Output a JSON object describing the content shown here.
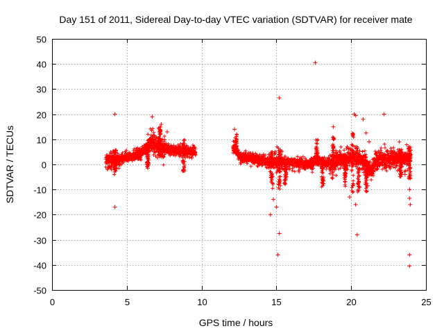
{
  "chart_data": {
    "type": "scatter",
    "title": "Day 151 of 2011, Sidereal Day-to-day VTEC variation (SDTVAR) for receiver mate",
    "xlabel": "GPS time / hours",
    "ylabel": "SDTVAR / TECUs",
    "xlim": [
      0,
      25
    ],
    "ylim": [
      -50,
      50
    ],
    "xticks": [
      0,
      5,
      10,
      15,
      20,
      25
    ],
    "yticks": [
      -50,
      -40,
      -30,
      -20,
      -10,
      0,
      10,
      20,
      30,
      40,
      50
    ],
    "grid": true,
    "marker": "+",
    "color": "#ff0000",
    "outliers": [
      [
        4.2,
        20
      ],
      [
        4.2,
        -17
      ],
      [
        6.4,
        -1.5
      ],
      [
        6.7,
        19
      ],
      [
        8.8,
        -2.5
      ],
      [
        12.2,
        14
      ],
      [
        15.2,
        26.5
      ],
      [
        15.2,
        -27.5
      ],
      [
        15.1,
        -36
      ],
      [
        14.6,
        -20
      ],
      [
        14.8,
        -14
      ],
      [
        15.0,
        -17
      ],
      [
        17.6,
        40.5
      ],
      [
        18.8,
        15
      ],
      [
        20.2,
        20
      ],
      [
        20.3,
        19.5
      ],
      [
        20.4,
        -28
      ],
      [
        20.3,
        -16
      ],
      [
        19.9,
        -13
      ],
      [
        20.8,
        18
      ],
      [
        21.0,
        12.5
      ],
      [
        22.2,
        20
      ],
      [
        23.9,
        -36
      ],
      [
        23.9,
        -40.5
      ],
      [
        23.9,
        -13.5
      ],
      [
        23.95,
        -16
      ],
      [
        23.9,
        -10
      ],
      [
        23.6,
        -4
      ],
      [
        21.1,
        -8.5
      ],
      [
        21.2,
        9
      ],
      [
        7.3,
        16
      ],
      [
        7.7,
        13
      ]
    ]
  }
}
